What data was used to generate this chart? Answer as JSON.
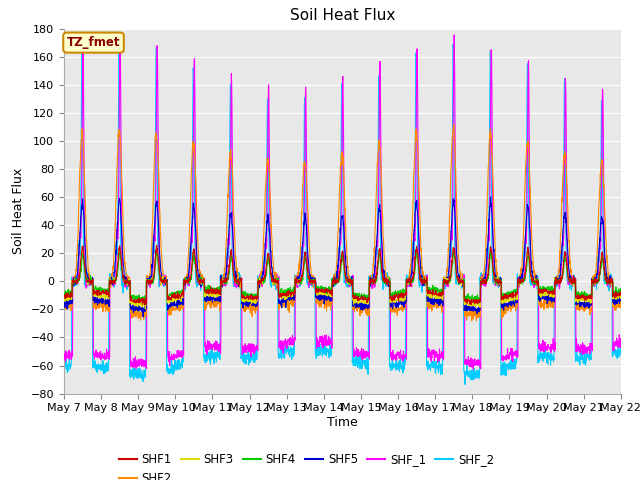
{
  "title": "Soil Heat Flux",
  "ylabel": "Soil Heat Flux",
  "xlabel": "Time",
  "xlim": [
    0,
    15.0
  ],
  "ylim": [
    -80,
    180
  ],
  "yticks": [
    -80,
    -60,
    -40,
    -20,
    0,
    20,
    40,
    60,
    80,
    100,
    120,
    140,
    160,
    180
  ],
  "xtick_labels": [
    "May 7",
    "May 8",
    "May 9",
    "May 10",
    "May 11",
    "May 12",
    "May 13",
    "May 14",
    "May 15",
    "May 16",
    "May 17",
    "May 18",
    "May 19",
    "May 20",
    "May 21",
    "May 22"
  ],
  "series_colors": {
    "SHF1": "#cc0000",
    "SHF2": "#ff8800",
    "SHF3": "#dddd00",
    "SHF4": "#00cc00",
    "SHF5": "#0000cc",
    "SHF_1": "#ff00ff",
    "SHF_2": "#00ccff"
  },
  "annotation_text": "TZ_fmet",
  "annotation_bg": "#ffffcc",
  "annotation_border": "#cc8800",
  "bg_color": "#e8e8e8",
  "grid_color": "#ffffff",
  "title_fontsize": 11,
  "axis_label_fontsize": 9,
  "tick_fontsize": 8
}
